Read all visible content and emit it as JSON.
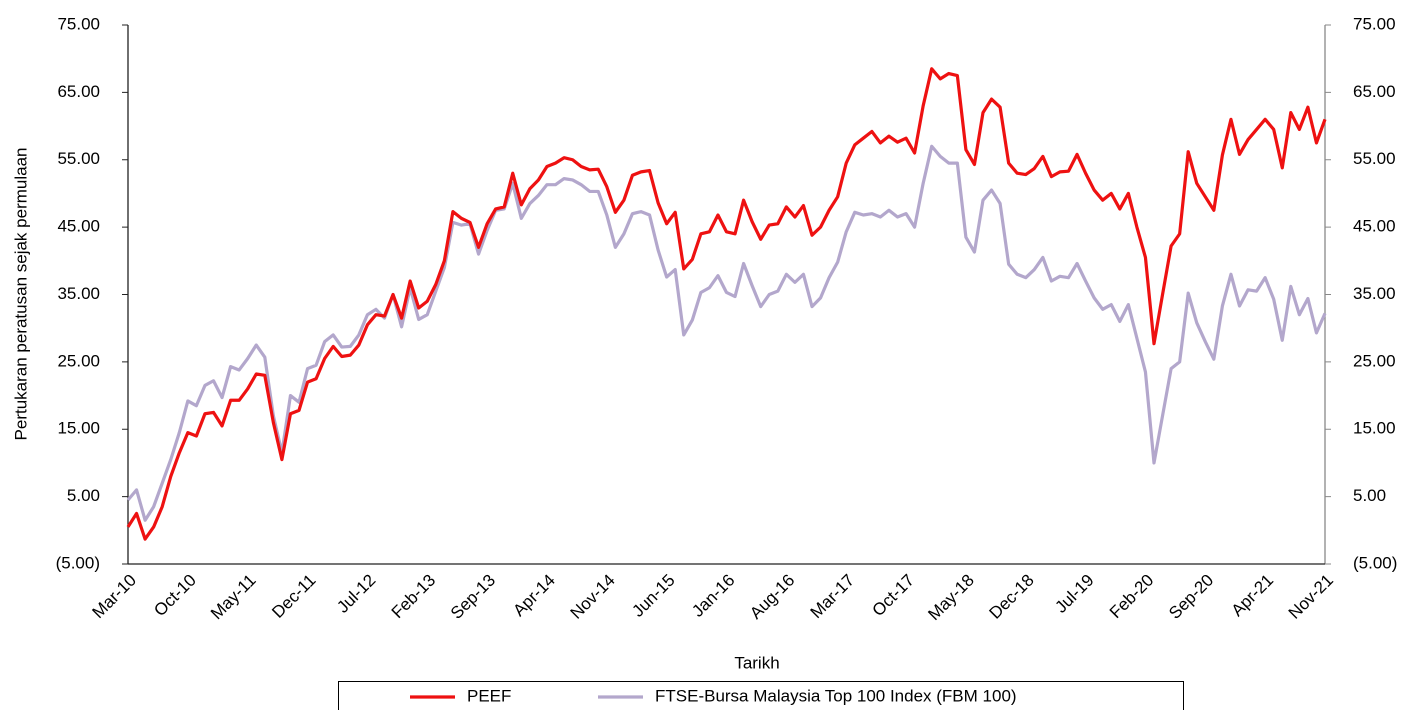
{
  "chart_data": {
    "type": "line",
    "y_label": "Pertukaran peratusan sejak permulaan",
    "x_label": "Tarikh",
    "categories": [
      "Mar-10",
      null,
      null,
      null,
      null,
      null,
      null,
      "Oct-10",
      null,
      null,
      null,
      null,
      null,
      null,
      "May-11",
      null,
      null,
      null,
      null,
      null,
      null,
      "Dec-11",
      null,
      null,
      null,
      null,
      null,
      null,
      "Jul-12",
      null,
      null,
      null,
      null,
      null,
      null,
      "Feb-13",
      null,
      null,
      null,
      null,
      null,
      null,
      "Sep-13",
      null,
      null,
      null,
      null,
      null,
      null,
      "Apr-14",
      null,
      null,
      null,
      null,
      null,
      null,
      "Nov-14",
      null,
      null,
      null,
      null,
      null,
      null,
      "Jun-15",
      null,
      null,
      null,
      null,
      null,
      null,
      "Jan-16",
      null,
      null,
      null,
      null,
      null,
      null,
      "Aug-16",
      null,
      null,
      null,
      null,
      null,
      null,
      "Mar-17",
      null,
      null,
      null,
      null,
      null,
      null,
      "Oct-17",
      null,
      null,
      null,
      null,
      null,
      null,
      "May-18",
      null,
      null,
      null,
      null,
      null,
      null,
      "Dec-18",
      null,
      null,
      null,
      null,
      null,
      null,
      "Jul-19",
      null,
      null,
      null,
      null,
      null,
      null,
      "Feb-20",
      null,
      null,
      null,
      null,
      null,
      null,
      "Sep-20",
      null,
      null,
      null,
      null,
      null,
      null,
      "Apr-21",
      null,
      null,
      null,
      null,
      null,
      null,
      "Nov-21"
    ],
    "series": [
      {
        "name": "PEEF",
        "color": "#ee1111",
        "values": [
          0.5,
          2.5,
          -1.3,
          0.5,
          3.5,
          8,
          11.5,
          14.5,
          14,
          17.3,
          17.5,
          15.5,
          19.3,
          19.3,
          21,
          23.2,
          23,
          16,
          10.5,
          17.3,
          17.8,
          22,
          22.5,
          25.5,
          27.3,
          25.8,
          26,
          27.5,
          30.5,
          32,
          31.8,
          35,
          31.5,
          37,
          33,
          34,
          36.5,
          40,
          47.3,
          46.3,
          45.7,
          42,
          45.5,
          47.7,
          48,
          53,
          48.3,
          50.7,
          52,
          54,
          54.5,
          55.3,
          55,
          54,
          53.5,
          53.6,
          51,
          47.2,
          49,
          52.7,
          53.2,
          53.4,
          48.6,
          45.5,
          47.2,
          38.8,
          40.2,
          44,
          44.3,
          46.8,
          44.3,
          44,
          49,
          45.8,
          43.2,
          45.3,
          45.5,
          48,
          46.5,
          48.2,
          43.8,
          45,
          47.5,
          49.5,
          54.5,
          57.2,
          58.2,
          59.2,
          57.5,
          58.5,
          57.6,
          58.2,
          56,
          63,
          68.5,
          67,
          67.8,
          67.5,
          56.5,
          54.3,
          62,
          64,
          62.8,
          54.5,
          53,
          52.8,
          53.7,
          55.5,
          52.5,
          53.2,
          53.3,
          55.8,
          53,
          50.5,
          49,
          50,
          47.7,
          50,
          45,
          40.5,
          27.7,
          35,
          42.2,
          44,
          56.2,
          51.5,
          49.5,
          47.5,
          55.7,
          61,
          55.8,
          58,
          59.5,
          61,
          59.5,
          53.8,
          62,
          59.5,
          62.8,
          57.5,
          61
        ]
      },
      {
        "name": "FTSE-Bursa Malaysia Top 100 Index (FBM 100)",
        "color": "#b3a7cc",
        "axis": "y2",
        "values": [
          4.5,
          6,
          1.5,
          3.5,
          7,
          10.5,
          14.5,
          19.2,
          18.5,
          21.5,
          22.2,
          19.7,
          24.3,
          23.8,
          25.5,
          27.5,
          25.7,
          17,
          11.5,
          20,
          19,
          24,
          24.5,
          28,
          29,
          27.2,
          27.3,
          29,
          32,
          32.8,
          31.5,
          35,
          30.2,
          36,
          31.3,
          32,
          35.5,
          39,
          45.7,
          45.3,
          45.5,
          41,
          44.5,
          47.5,
          47.7,
          51.5,
          46.3,
          48.5,
          49.7,
          51.3,
          51.3,
          52.2,
          52,
          51.3,
          50.3,
          50.3,
          46.8,
          42,
          44,
          47,
          47.3,
          46.8,
          41.6,
          37.6,
          38.7,
          29,
          31.2,
          35.3,
          36,
          37.8,
          35.3,
          34.7,
          39.6,
          36.3,
          33.2,
          35,
          35.5,
          38,
          36.8,
          38,
          33.2,
          34.5,
          37.5,
          39.8,
          44.3,
          47.2,
          46.8,
          47,
          46.5,
          47.5,
          46.5,
          47,
          45,
          51.5,
          57,
          55.5,
          54.5,
          54.5,
          43.5,
          41.3,
          49,
          50.5,
          48.5,
          39.5,
          38,
          37.5,
          38.7,
          40.5,
          37,
          37.7,
          37.5,
          39.6,
          37,
          34.5,
          32.8,
          33.5,
          31,
          33.5,
          28.5,
          23.5,
          10,
          17,
          24,
          25,
          35.2,
          30.8,
          28,
          25.4,
          33.3,
          38,
          33.3,
          35.7,
          35.5,
          37.5,
          34.3,
          28.2,
          36.2,
          32,
          34.4,
          29.3,
          32.2
        ]
      }
    ],
    "ylim": [
      -5,
      75
    ],
    "yticks": [
      {
        "value": 75,
        "label": "75.00"
      },
      {
        "value": 65,
        "label": "65.00"
      },
      {
        "value": 55,
        "label": "55.00"
      },
      {
        "value": 45,
        "label": "45.00"
      },
      {
        "value": 35,
        "label": "35.00"
      },
      {
        "value": 25,
        "label": "25.00"
      },
      {
        "value": 15,
        "label": "15.00"
      },
      {
        "value": 5,
        "label": "5.00"
      },
      {
        "value": -5,
        "label": "(5.00)"
      }
    ],
    "y2lim": [
      -5,
      75
    ],
    "y2ticks": [
      {
        "value": 75,
        "label": "75.00"
      },
      {
        "value": 65,
        "label": "65.00"
      },
      {
        "value": 55,
        "label": "55.00"
      },
      {
        "value": 45,
        "label": "45.00"
      },
      {
        "value": 35,
        "label": "35.00"
      },
      {
        "value": 25,
        "label": "25.00"
      },
      {
        "value": 15,
        "label": "15.00"
      },
      {
        "value": 5,
        "label": "5.00"
      },
      {
        "value": -5,
        "label": "(5.00)"
      }
    ],
    "grid": false,
    "legend": "bottom"
  }
}
